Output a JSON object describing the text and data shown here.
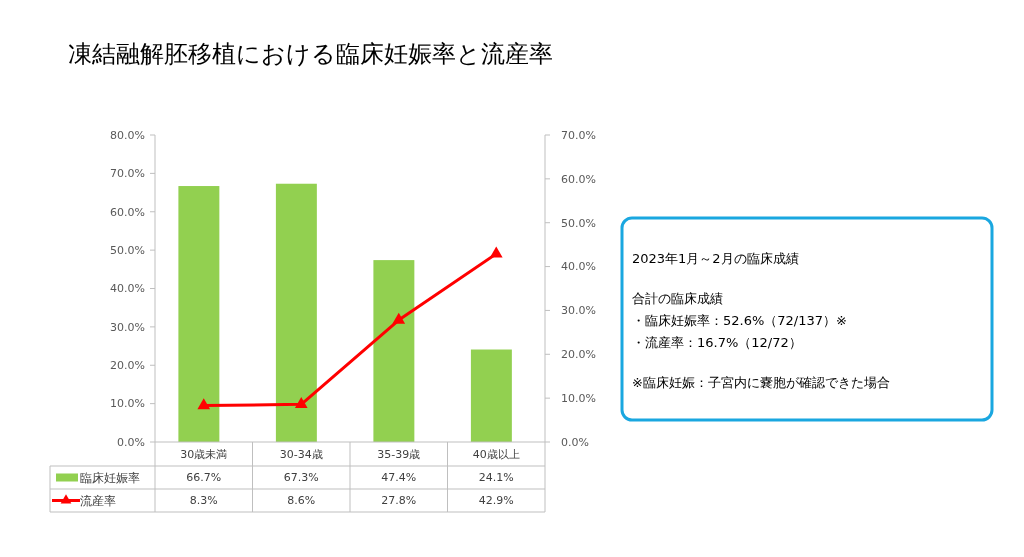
{
  "chart_data": {
    "type": "bar",
    "title": "凍結融解胚移植における臨床妊娠率と流産率",
    "categories": [
      "30歳未満",
      "30-34歳",
      "35-39歳",
      "40歳以上"
    ],
    "series": [
      {
        "name": "臨床妊娠率",
        "color": "#92d050",
        "values": [
          66.7,
          67.3,
          47.4,
          24.1
        ],
        "value_labels": [
          "66.7%",
          "67.3%",
          "47.4%",
          "24.1%"
        ]
      },
      {
        "name": "流産率",
        "type": "line",
        "axis": "y2",
        "color": "#ff0000",
        "marker": "triangle",
        "values": [
          8.3,
          8.6,
          27.8,
          42.9
        ],
        "value_labels": [
          "8.3%",
          "8.6%",
          "27.8%",
          "42.9%"
        ]
      }
    ],
    "ylim": [
      0,
      80
    ],
    "yticks": [
      {
        "value": 0,
        "label": "0.0%"
      },
      {
        "value": 10,
        "label": "10.0%"
      },
      {
        "value": 20,
        "label": "20.0%"
      },
      {
        "value": 30,
        "label": "30.0%"
      },
      {
        "value": 40,
        "label": "40.0%"
      },
      {
        "value": 50,
        "label": "50.0%"
      },
      {
        "value": 60,
        "label": "60.0%"
      },
      {
        "value": 70,
        "label": "70.0%"
      },
      {
        "value": 80,
        "label": "80.0%"
      }
    ],
    "y2lim": [
      0,
      70
    ],
    "y2ticks": [
      {
        "value": 0,
        "label": "0.0%"
      },
      {
        "value": 10,
        "label": "10.0%"
      },
      {
        "value": 20,
        "label": "20.0%"
      },
      {
        "value": 30,
        "label": "30.0%"
      },
      {
        "value": 40,
        "label": "40.0%"
      },
      {
        "value": 50,
        "label": "50.0%"
      },
      {
        "value": 60,
        "label": "60.0%"
      },
      {
        "value": 70,
        "label": "70.0%"
      }
    ],
    "legend": "bottom",
    "annotations": [
      "2023年1月～2月の臨床成績",
      "合計の臨床成績",
      "・臨床妊娠率：52.6%（72/137）※",
      "・流産率：16.7%（12/72）",
      "※臨床妊娠：子宮内に嚢胞が確認できた場合"
    ]
  }
}
